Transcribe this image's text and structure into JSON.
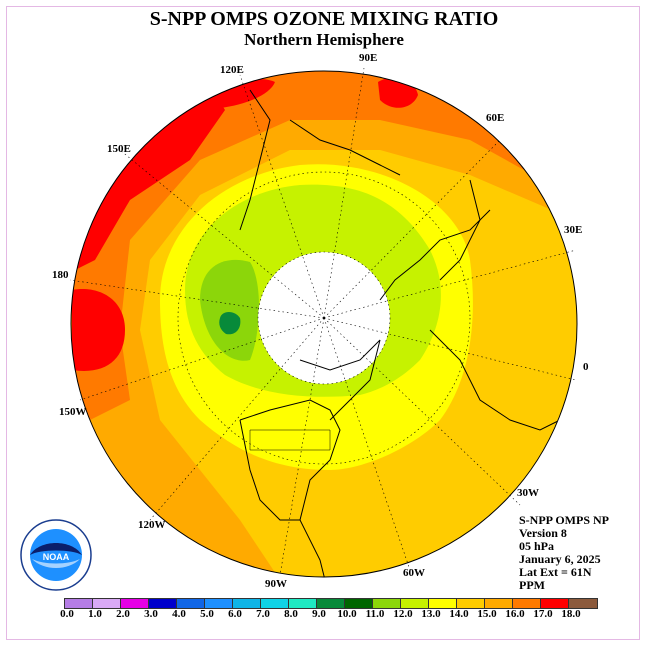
{
  "title": "S-NPP OMPS OZONE MIXING RATIO",
  "subtitle": "Northern Hemisphere",
  "info": {
    "product": "S-NPP OMPS NP",
    "version": "Version 8",
    "pressure": "05 hPa",
    "date": "January 6, 2025",
    "lat_ext": "Lat Ext = 61N",
    "units": "PPM"
  },
  "longitude_labels": [
    "120E",
    "90E",
    "60E",
    "150E",
    "30E",
    "180",
    "0",
    "150W",
    "30W",
    "120W",
    "60W",
    "90W"
  ],
  "colorbar": {
    "colors": [
      "#b57de5",
      "#d9a9f5",
      "#e600e6",
      "#0000cc",
      "#1166e6",
      "#1e90ff",
      "#0fb4e6",
      "#10d3e6",
      "#1fe9c2",
      "#078a3a",
      "#006600",
      "#8cd60a",
      "#c6f200",
      "#ffff00",
      "#ffcc00",
      "#ffaa00",
      "#ff7a00",
      "#ff0000",
      "#8c5a3c"
    ],
    "tick_labels": [
      "0.0",
      "1.0",
      "2.0",
      "3.0",
      "4.0",
      "5.0",
      "6.0",
      "7.0",
      "8.0",
      "9.0",
      "10.0",
      "11.0",
      "12.0",
      "13.0",
      "14.0",
      "15.0",
      "16.0",
      "17.0",
      "18.0"
    ]
  },
  "logo_text": "NOAA"
}
